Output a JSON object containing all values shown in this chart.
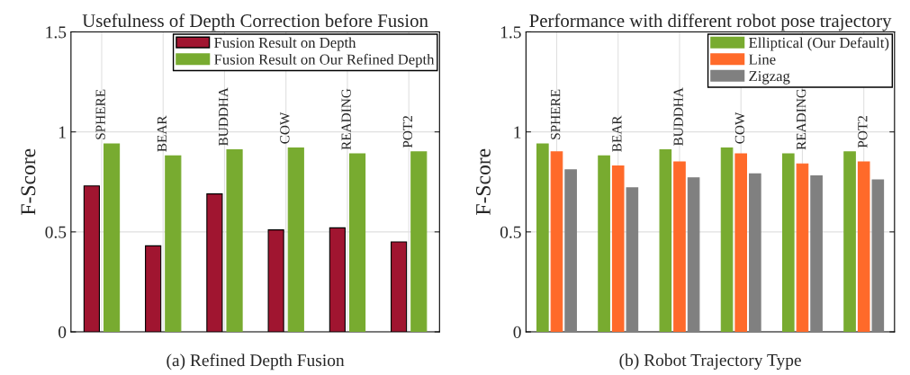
{
  "chart_data": [
    {
      "type": "bar",
      "title": "Usefulness of Depth Correction before Fusion",
      "xlabel": "(a) Refined Depth Fusion",
      "ylabel": "F-Score",
      "categories": [
        "SPHERE",
        "BEAR",
        "BUDDHA",
        "COW",
        "READING",
        "POT2"
      ],
      "series": [
        {
          "name": "Fusion Result on Depth",
          "color": "#a01530",
          "values": [
            0.73,
            0.43,
            0.69,
            0.51,
            0.52,
            0.45
          ]
        },
        {
          "name": "Fusion Result on Our Refined Depth",
          "color": "#78ab30",
          "values": [
            0.94,
            0.88,
            0.91,
            0.92,
            0.89,
            0.9
          ]
        }
      ],
      "ylim": [
        0,
        1.5
      ],
      "yticks": [
        0,
        0.5,
        1,
        1.5
      ],
      "grid": true,
      "legend": "top right"
    },
    {
      "type": "bar",
      "title": "Performance with different robot pose trajectory",
      "xlabel": "(b) Robot Trajectory Type",
      "ylabel": "F-Score",
      "categories": [
        "SPHERE",
        "BEAR",
        "BUDDHA",
        "COW",
        "READING",
        "POT2"
      ],
      "series": [
        {
          "name": "Elliptical (Our Default)",
          "color": "#78ab30",
          "values": [
            0.94,
            0.88,
            0.91,
            0.92,
            0.89,
            0.9
          ]
        },
        {
          "name": "Line",
          "color": "#ff6a2a",
          "values": [
            0.9,
            0.83,
            0.85,
            0.89,
            0.84,
            0.85
          ]
        },
        {
          "name": "Zigzag",
          "color": "#808080",
          "values": [
            0.81,
            0.72,
            0.77,
            0.79,
            0.78,
            0.76
          ]
        }
      ],
      "ylim": [
        0,
        1.5
      ],
      "yticks": [
        0,
        0.5,
        1,
        1.5
      ],
      "grid": true,
      "legend": "top right"
    }
  ]
}
